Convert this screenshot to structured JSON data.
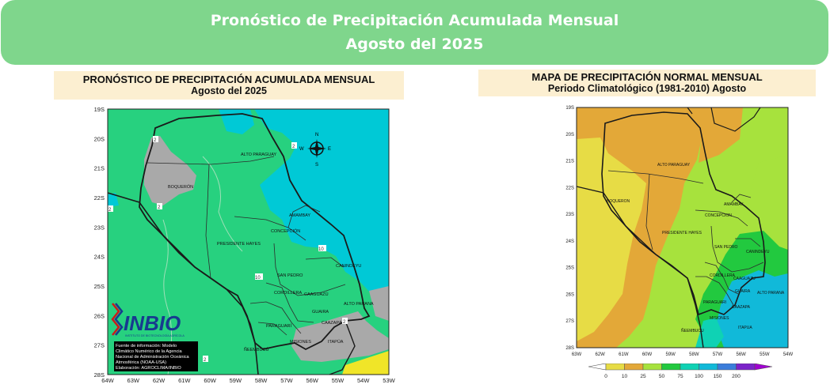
{
  "banner": {
    "title": "Pronóstico de Precipitación Acumulada Mensual",
    "subtitle": "Agosto del 2025"
  },
  "forecast_panel": {
    "title": "PRONÓSTICO DE PRECIPITACIÓN ACUMULADA MENSUAL",
    "subtitle": "Agosto del 2025",
    "lat_labels": [
      "19S",
      "20S",
      "21S",
      "22S",
      "23S",
      "24S",
      "25S",
      "26S",
      "27S",
      "28S"
    ],
    "lon_labels": [
      "64W",
      "63W",
      "62W",
      "61W",
      "60W",
      "59W",
      "58W",
      "57W",
      "56W",
      "55W",
      "54W",
      "53W"
    ],
    "regions": [
      "ALTO PARAGUAY",
      "BOQUERÓN",
      "PRESIDENTE HAYES",
      "CONCEPCIÓN",
      "AMAMBAY",
      "SAN PEDRO",
      "CANINDEYU",
      "CORDILLERA",
      "CAAGUAZÚ",
      "ALTO PARANA",
      "GUAIRA",
      "CAAZAPÁ",
      "PARAGUARÍ",
      "MISIONES",
      "ÑEEMBUCÚ",
      "ITAPÚA"
    ],
    "contour_labels": [
      "2",
      "2",
      "2",
      "2",
      "10",
      "10",
      "2",
      "2",
      "2"
    ],
    "compass": {
      "n": "N",
      "s": "S",
      "e": "E",
      "w": "W"
    },
    "logo": {
      "text": "INBIO",
      "tagline": "INSTITUTO DE BIOTECNOLOGÍA AGRÍCOLA"
    },
    "credits": [
      "Fuente de información: Modelo",
      "Climático Numérico de la Agencia",
      "Nacional de Administración Oceánica",
      "Atmosférica (NOAA-USA)",
      "Elaboración: AGROCLIMA/INBIO"
    ],
    "colors": {
      "green": "#27d17f",
      "cyan": "#00c9d6",
      "gray": "#a9a9a9",
      "yellow": "#f0e528"
    }
  },
  "normal_panel": {
    "title": "MAPA DE PRECIPITACIÓN  NORMAL MENSUAL",
    "subtitle": "Periodo Climatológico (1981-2010)  Agosto",
    "lat_labels": [
      "19S",
      "20S",
      "21S",
      "22S",
      "23S",
      "24S",
      "25S",
      "26S",
      "27S",
      "28S"
    ],
    "lon_labels": [
      "63W",
      "62W",
      "61W",
      "60W",
      "59W",
      "58W",
      "57W",
      "56W",
      "55W",
      "54W"
    ],
    "regions": [
      "ALTO PARAGUAY",
      "BOQUERON",
      "PRESIDENTE HAYES",
      "CONCEPCION",
      "AMAMBAY",
      "SAN PEDRO",
      "CANINDEYU",
      "CORDILLERA",
      "CAAGUAZU",
      "ALTO PARANA",
      "GUAIRA",
      "CAAZAPA",
      "PARAGUARI",
      "MISIONES",
      "ÑEEMBUCU",
      "ITAPUA"
    ],
    "legend_ticks": [
      "0",
      "10",
      "25",
      "50",
      "75",
      "100",
      "150",
      "200"
    ],
    "legend_colors": [
      "#e7dc45",
      "#e3a838",
      "#a7e23d",
      "#22c93f",
      "#0fd2b4",
      "#11b9d9",
      "#3b7ddb",
      "#7b23c9"
    ],
    "legend_arrow_colors": {
      "left": "#ffffff",
      "right": "#a000d0"
    }
  }
}
